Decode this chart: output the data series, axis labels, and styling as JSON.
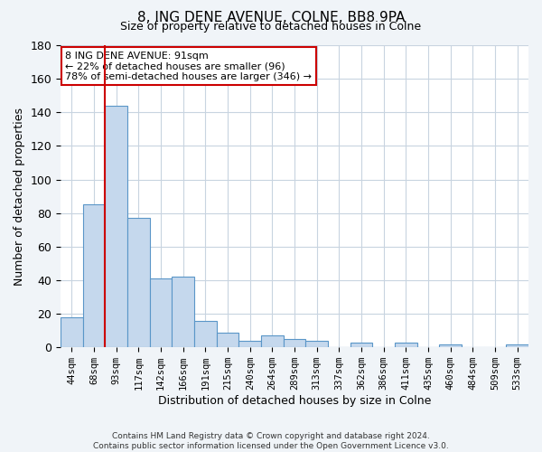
{
  "title": "8, ING DENE AVENUE, COLNE, BB8 9PA",
  "subtitle": "Size of property relative to detached houses in Colne",
  "xlabel": "Distribution of detached houses by size in Colne",
  "ylabel": "Number of detached properties",
  "bar_labels": [
    "44sqm",
    "68sqm",
    "93sqm",
    "117sqm",
    "142sqm",
    "166sqm",
    "191sqm",
    "215sqm",
    "240sqm",
    "264sqm",
    "289sqm",
    "313sqm",
    "337sqm",
    "362sqm",
    "386sqm",
    "411sqm",
    "435sqm",
    "460sqm",
    "484sqm",
    "509sqm",
    "533sqm"
  ],
  "bar_heights": [
    18,
    85,
    144,
    77,
    41,
    42,
    16,
    9,
    4,
    7,
    5,
    4,
    0,
    3,
    0,
    3,
    0,
    2,
    0,
    0,
    2
  ],
  "bar_color": "#c5d8ed",
  "bar_edge_color": "#5a96c8",
  "vline_color": "#cc0000",
  "vline_x": 2,
  "ylim": [
    0,
    180
  ],
  "yticks": [
    0,
    20,
    40,
    60,
    80,
    100,
    120,
    140,
    160,
    180
  ],
  "annotation_text": "8 ING DENE AVENUE: 91sqm\n← 22% of detached houses are smaller (96)\n78% of semi-detached houses are larger (346) →",
  "annotation_box_color": "#ffffff",
  "annotation_box_edge_color": "#cc0000",
  "footer_line1": "Contains HM Land Registry data © Crown copyright and database right 2024.",
  "footer_line2": "Contains public sector information licensed under the Open Government Licence v3.0.",
  "bg_color": "#f0f4f8",
  "plot_bg_color": "#ffffff",
  "grid_color": "#c8d4e0"
}
